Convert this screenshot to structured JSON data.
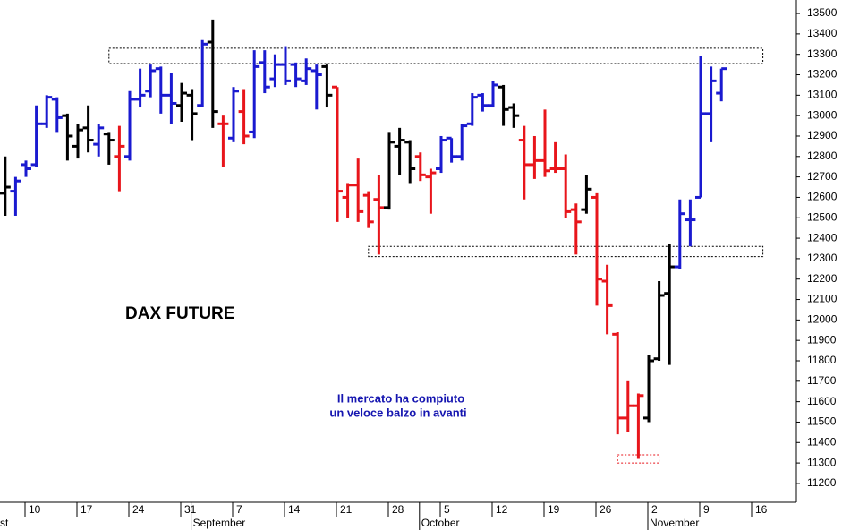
{
  "chart_data": {
    "type": "ohlc",
    "title": "DAX FUTURE",
    "annotation": [
      "Il mercato ha compiuto",
      "un veloce balzo in avanti"
    ],
    "categories": [
      null,
      null,
      null,
      null,
      null,
      "10",
      null,
      null,
      null,
      null,
      "17",
      null,
      null,
      null,
      null,
      "24",
      null,
      null,
      null,
      null,
      "31",
      null,
      null,
      null,
      null,
      "7",
      null,
      null,
      null,
      null,
      "14",
      null,
      null,
      null,
      null,
      "21",
      null,
      null,
      null,
      null,
      "28",
      null,
      null,
      null,
      null,
      "5",
      null,
      null,
      null,
      null,
      "12",
      null,
      null,
      null,
      null,
      "19",
      null,
      null,
      null,
      null,
      "26",
      null,
      null,
      null,
      null,
      "2",
      null,
      null,
      null,
      null,
      "9",
      null,
      null,
      null,
      null,
      "16",
      null,
      null,
      null,
      null
    ],
    "months": [
      "st",
      null,
      null,
      null,
      null,
      null,
      null,
      null,
      null,
      null,
      null,
      null,
      null,
      null,
      null,
      null,
      null,
      null,
      null,
      null,
      null,
      "September",
      null,
      null,
      null,
      null,
      null,
      null,
      null,
      null,
      null,
      null,
      null,
      null,
      null,
      null,
      null,
      null,
      null,
      null,
      null,
      null,
      null,
      "October",
      null,
      null,
      null,
      null,
      null,
      null,
      null,
      null,
      null,
      null,
      null,
      null,
      null,
      null,
      null,
      null,
      null,
      null,
      null,
      null,
      null,
      "November",
      null,
      null,
      null,
      null,
      null,
      null,
      null,
      null,
      null,
      null,
      null,
      null,
      null,
      null
    ],
    "open": [
      null,
      null,
      null,
      12620,
      12630,
      12760,
      12760,
      12960,
      13080,
      13000,
      12850,
      12940,
      12860,
      12910,
      12800,
      12800,
      13080,
      13120,
      13230,
      13100,
      13050,
      13100,
      13050,
      13360,
      12960,
      12890,
      13020,
      12920,
      13260,
      13180,
      13250,
      13250,
      13170,
      13220,
      13240,
      13140,
      12600,
      12660,
      12610,
      12590,
      12550,
      12850,
      12870,
      12800,
      12700,
      12740,
      12890,
      12800,
      12960,
      13100,
      13050,
      13140,
      13040,
      12880,
      12760,
      12780,
      12740,
      12740,
      12540,
      12540,
      12600,
      12190,
      11930,
      11520,
      11580,
      11520,
      11810,
      12130,
      12260,
      12490,
      12600,
      13010,
      13110,
      null,
      null,
      null,
      null,
      null,
      null,
      null
    ],
    "high": [
      null,
      null,
      null,
      12800,
      12700,
      12780,
      13050,
      13100,
      13090,
      13010,
      12960,
      13050,
      12960,
      12920,
      12950,
      13120,
      13230,
      13250,
      13240,
      13210,
      13160,
      13130,
      13370,
      13470,
      13000,
      13140,
      13130,
      13320,
      13320,
      13300,
      13340,
      13260,
      13280,
      13250,
      13250,
      13140,
      12670,
      12790,
      12630,
      12710,
      12920,
      12940,
      12880,
      12820,
      12740,
      12900,
      12890,
      12960,
      13110,
      13110,
      13170,
      13150,
      13060,
      12950,
      12900,
      13030,
      12870,
      12810,
      12570,
      12710,
      12620,
      12270,
      11940,
      11700,
      11640,
      11830,
      12190,
      12370,
      12590,
      12590,
      13290,
      13240,
      13230,
      null,
      null,
      null,
      null,
      null,
      null,
      null
    ],
    "low": [
      null,
      null,
      null,
      12510,
      12510,
      12700,
      12750,
      12940,
      12920,
      12780,
      12790,
      12820,
      12800,
      12760,
      12630,
      12780,
      13040,
      13090,
      13010,
      12960,
      12970,
      12880,
      13040,
      12940,
      12750,
      12870,
      12860,
      12890,
      13110,
      13140,
      13150,
      13140,
      13150,
      13030,
      13040,
      12480,
      12500,
      12480,
      12450,
      12320,
      12540,
      12710,
      12670,
      12680,
      12520,
      12720,
      12770,
      12780,
      12950,
      13020,
      13040,
      12950,
      12940,
      12590,
      12690,
      12700,
      12720,
      12500,
      12320,
      12520,
      12070,
      11930,
      11440,
      11450,
      11320,
      11500,
      11800,
      11780,
      12250,
      12360,
      12600,
      12870,
      13070,
      null,
      null,
      null,
      null,
      null,
      null,
      null
    ],
    "close": [
      null,
      null,
      null,
      12650,
      12680,
      12740,
      12960,
      13090,
      12990,
      12900,
      12930,
      12880,
      12940,
      12880,
      12850,
      13080,
      13100,
      13220,
      13100,
      13060,
      13110,
      13010,
      13350,
      13020,
      12960,
      13120,
      12900,
      13240,
      13140,
      13250,
      13170,
      13180,
      13230,
      13200,
      13100,
      12630,
      12660,
      12530,
      12480,
      12550,
      12870,
      12880,
      12740,
      12710,
      12720,
      12880,
      12800,
      12950,
      13090,
      13050,
      13150,
      13030,
      13000,
      12760,
      12780,
      12730,
      12740,
      12530,
      12480,
      12640,
      12200,
      12070,
      11520,
      11580,
      11630,
      11800,
      12120,
      12260,
      12520,
      12490,
      13010,
      13170,
      13230,
      null,
      null,
      null,
      null,
      null,
      null,
      null
    ],
    "bar_colors": [
      null,
      null,
      null,
      "#000000",
      "#1a1ad0",
      "#1a1ad0",
      "#1a1ad0",
      "#1a1ad0",
      "#1a1ad0",
      "#000000",
      "#000000",
      "#000000",
      "#1a1ad0",
      "#000000",
      "#e8151b",
      "#1a1ad0",
      "#1a1ad0",
      "#1a1ad0",
      "#1a1ad0",
      "#1a1ad0",
      "#000000",
      "#000000",
      "#1a1ad0",
      "#000000",
      "#e8151b",
      "#1a1ad0",
      "#e8151b",
      "#1a1ad0",
      "#1a1ad0",
      "#1a1ad0",
      "#1a1ad0",
      "#1a1ad0",
      "#1a1ad0",
      "#1a1ad0",
      "#000000",
      "#e8151b",
      "#e8151b",
      "#e8151b",
      "#e8151b",
      "#e8151b",
      "#000000",
      "#000000",
      "#000000",
      "#e8151b",
      "#e8151b",
      "#1a1ad0",
      "#1a1ad0",
      "#1a1ad0",
      "#1a1ad0",
      "#1a1ad0",
      "#1a1ad0",
      "#000000",
      "#000000",
      "#e8151b",
      "#e8151b",
      "#e8151b",
      "#e8151b",
      "#e8151b",
      "#e8151b",
      "#000000",
      "#e8151b",
      "#e8151b",
      "#e8151b",
      "#e8151b",
      "#e8151b",
      "#000000",
      "#000000",
      "#000000",
      "#1a1ad0",
      "#1a1ad0",
      "#1a1ad0",
      "#1a1ad0",
      "#1a1ad0",
      null,
      null,
      null,
      null,
      null,
      null,
      null
    ],
    "zones": [
      {
        "range": [
          13255,
          13330
        ],
        "start": 13,
        "end": 76,
        "color": "#000000"
      },
      {
        "range": [
          12310,
          12360
        ],
        "start": 38,
        "end": 76,
        "color": "#000000"
      },
      {
        "range": [
          11300,
          11340
        ],
        "start": 62,
        "end": 66,
        "color": "#e8151b"
      }
    ],
    "ylim": [
      11112,
      13566
    ],
    "yticks": [
      11200,
      11300,
      11400,
      11500,
      11600,
      11700,
      11800,
      11900,
      12000,
      12100,
      12200,
      12300,
      12400,
      12500,
      12600,
      12700,
      12800,
      12900,
      13000,
      13100,
      13200,
      13300,
      13400,
      13500
    ]
  }
}
